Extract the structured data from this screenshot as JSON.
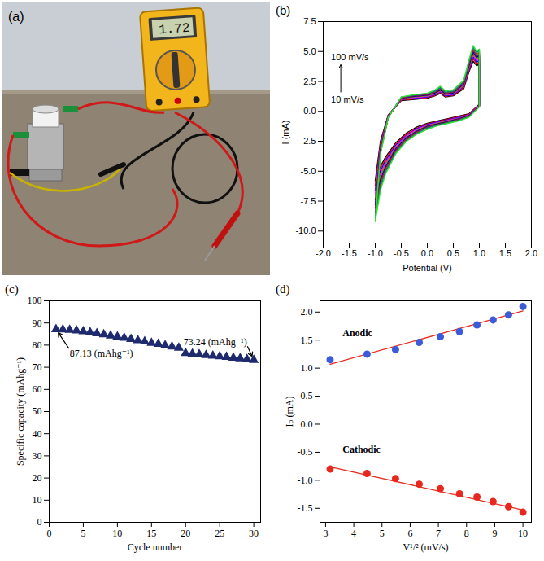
{
  "photo": {
    "panel": "(a)",
    "display": 1.72
  },
  "chart_data": [
    {
      "type": "line",
      "panel": "(b)",
      "xlabel": "Potential (V)",
      "ylabel": "I (mA)",
      "x": [
        -1.0,
        -0.9,
        -0.75,
        -0.5,
        -0.25,
        0.0,
        0.15,
        0.25,
        0.35,
        0.5,
        0.7,
        0.8,
        0.88,
        0.95,
        1.0,
        1.0,
        0.8,
        0.6,
        0.4,
        0.2,
        0.0,
        -0.2,
        -0.4,
        -0.6,
        -0.8,
        -0.9,
        -1.0
      ],
      "series": [
        {
          "color": "#000000",
          "values": [
            -5.8,
            -2.5,
            -0.3,
            0.9,
            1.0,
            1.1,
            1.3,
            1.5,
            1.2,
            1.3,
            1.9,
            3.3,
            4.2,
            3.8,
            4.0,
            0.6,
            -0.2,
            -0.4,
            -0.6,
            -0.8,
            -1.0,
            -1.3,
            -1.8,
            -2.6,
            -3.8,
            -4.6,
            -5.8
          ]
        },
        {
          "color": "#ff0000",
          "values": [
            -6.2,
            -2.7,
            -0.3,
            0.95,
            1.05,
            1.15,
            1.35,
            1.6,
            1.25,
            1.35,
            2.0,
            3.4,
            4.4,
            3.95,
            4.15,
            0.55,
            -0.25,
            -0.45,
            -0.65,
            -0.85,
            -1.05,
            -1.4,
            -1.9,
            -2.7,
            -3.95,
            -4.8,
            -6.2
          ]
        },
        {
          "color": "#0000ff",
          "values": [
            -6.6,
            -2.9,
            -0.35,
            1.0,
            1.1,
            1.2,
            1.4,
            1.65,
            1.3,
            1.4,
            2.1,
            3.5,
            4.55,
            4.1,
            4.3,
            0.5,
            -0.3,
            -0.5,
            -0.7,
            -0.9,
            -1.1,
            -1.45,
            -2.0,
            -2.8,
            -4.1,
            -5.0,
            -6.6
          ]
        },
        {
          "color": "#ff00ff",
          "values": [
            -7.0,
            -3.0,
            -0.4,
            1.0,
            1.15,
            1.25,
            1.45,
            1.7,
            1.35,
            1.45,
            2.15,
            3.6,
            4.7,
            4.25,
            4.45,
            0.5,
            -0.3,
            -0.55,
            -0.75,
            -0.95,
            -1.15,
            -1.5,
            -2.05,
            -2.9,
            -4.25,
            -5.2,
            -7.0
          ]
        },
        {
          "color": "#808000",
          "values": [
            -7.4,
            -3.1,
            -0.4,
            1.05,
            1.2,
            1.3,
            1.5,
            1.75,
            1.4,
            1.5,
            2.2,
            3.7,
            4.8,
            4.4,
            4.6,
            0.45,
            -0.35,
            -0.6,
            -0.8,
            -1.0,
            -1.2,
            -1.6,
            -2.15,
            -3.0,
            -4.4,
            -5.4,
            -7.4
          ]
        },
        {
          "color": "#000080",
          "values": [
            -7.8,
            -3.2,
            -0.45,
            1.1,
            1.25,
            1.35,
            1.55,
            1.8,
            1.45,
            1.55,
            2.3,
            3.8,
            4.95,
            4.5,
            4.7,
            0.45,
            -0.35,
            -0.62,
            -0.85,
            -1.05,
            -1.25,
            -1.65,
            -2.2,
            -3.1,
            -4.6,
            -5.7,
            -7.8
          ]
        },
        {
          "color": "#800080",
          "values": [
            -8.1,
            -3.3,
            -0.45,
            1.1,
            1.3,
            1.4,
            1.6,
            1.9,
            1.5,
            1.6,
            2.35,
            3.95,
            5.1,
            4.6,
            4.8,
            0.45,
            -0.4,
            -0.65,
            -0.9,
            -1.1,
            -1.3,
            -1.7,
            -2.3,
            -3.2,
            -4.75,
            -5.9,
            -8.1
          ]
        },
        {
          "color": "#8b4513",
          "values": [
            -8.5,
            -3.4,
            -0.5,
            1.15,
            1.35,
            1.45,
            1.65,
            1.95,
            1.55,
            1.65,
            2.45,
            4.05,
            5.2,
            4.75,
            4.95,
            0.4,
            -0.42,
            -0.7,
            -0.92,
            -1.12,
            -1.35,
            -1.78,
            -2.38,
            -3.3,
            -4.9,
            -6.1,
            -8.5
          ]
        },
        {
          "color": "#008080",
          "values": [
            -8.9,
            -3.5,
            -0.5,
            1.2,
            1.35,
            1.5,
            1.7,
            2.0,
            1.6,
            1.7,
            2.5,
            4.15,
            5.35,
            4.9,
            5.1,
            0.4,
            -0.45,
            -0.75,
            -0.95,
            -1.15,
            -1.4,
            -1.85,
            -2.45,
            -3.4,
            -5.05,
            -6.35,
            -8.9
          ]
        },
        {
          "color": "#33e02f",
          "values": [
            -9.2,
            -3.6,
            -0.5,
            1.2,
            1.4,
            1.5,
            1.8,
            2.1,
            1.7,
            1.8,
            2.6,
            4.3,
            5.5,
            5.0,
            5.2,
            0.4,
            -0.5,
            -0.8,
            -1.0,
            -1.2,
            -1.5,
            -1.9,
            -2.5,
            -3.5,
            -5.2,
            -6.6,
            -9.2
          ]
        }
      ],
      "xlim": [
        -2,
        2
      ],
      "xticks": [
        {
          "value": -2,
          "label": "-2.0"
        },
        -1.5,
        {
          "value": -1,
          "label": "-1.0"
        },
        -0.5,
        {
          "value": 0,
          "label": "0.0"
        },
        0.5,
        {
          "value": 1,
          "label": "1.0"
        },
        1.5,
        {
          "value": 2,
          "label": "2.0"
        }
      ],
      "ylim": [
        -11,
        7.5
      ],
      "yticks": [
        {
          "value": -10,
          "label": "-10.0"
        },
        -7.5,
        {
          "value": -5,
          "label": "-5.0"
        },
        -2.5,
        {
          "value": 0,
          "label": "0.0"
        },
        2.5,
        {
          "value": 5,
          "label": "5.0"
        },
        7.5
      ],
      "annotations": [
        {
          "text": "100 mV/s",
          "x": -1.85,
          "y": 4.5
        },
        {
          "text": "10 mV/s",
          "x": -1.85,
          "y": 1.0
        }
      ]
    },
    {
      "type": "scatter",
      "panel": "(c)",
      "xlabel": "Cycle number",
      "ylabel": "Specific capacity (mAhg⁻¹)",
      "x": [
        1,
        2,
        3,
        4,
        5,
        6,
        7,
        8,
        9,
        10,
        11,
        12,
        13,
        14,
        15,
        16,
        17,
        18,
        19,
        20,
        21,
        22,
        23,
        24,
        25,
        26,
        27,
        28,
        29,
        30
      ],
      "series": [
        {
          "color": "#1f2a6e",
          "marker": "triangle",
          "values": [
            87.13,
            87.0,
            86.9,
            86.6,
            86.2,
            85.8,
            85.3,
            84.8,
            84.3,
            83.8,
            83.3,
            82.7,
            82.2,
            81.6,
            81.0,
            80.5,
            79.9,
            79.3,
            78.8,
            76.4,
            76.1,
            75.8,
            75.5,
            75.2,
            74.9,
            74.6,
            74.3,
            74.0,
            73.6,
            73.24
          ]
        }
      ],
      "xlim": [
        0,
        31
      ],
      "xticks": [
        0,
        5,
        10,
        15,
        20,
        25,
        30
      ],
      "ylim": [
        0,
        100
      ],
      "yticks": [
        0,
        10,
        20,
        30,
        40,
        50,
        60,
        70,
        80,
        90,
        100
      ],
      "annotations": [
        {
          "text": "87.13 (mAhg⁻¹)",
          "x": 3,
          "y": 78,
          "xy": [
            1,
            87.13
          ]
        },
        {
          "text": "73.24 (mAhg⁻¹)",
          "x": 29,
          "y": 80,
          "xy": [
            30,
            73.24
          ]
        }
      ]
    },
    {
      "type": "scatter",
      "panel": "(d)",
      "xlabel": "V¹/² (mV/s)",
      "ylabel": "Iₚ (mA)",
      "x": [
        3.16,
        4.47,
        5.48,
        6.32,
        7.07,
        7.75,
        8.37,
        8.94,
        9.49,
        10.0
      ],
      "series": [
        {
          "color": "#3b5bdb",
          "marker": "circle",
          "values": [
            1.15,
            1.25,
            1.33,
            1.46,
            1.56,
            1.65,
            1.77,
            1.86,
            1.95,
            2.1
          ]
        },
        {
          "color": "#e8281e",
          "marker": "circle",
          "values": [
            -0.8,
            -0.88,
            -0.97,
            -1.07,
            -1.15,
            -1.24,
            -1.3,
            -1.38,
            -1.47,
            -1.57
          ]
        },
        {
          "type": "line",
          "color": "#e53020",
          "x": [
            3.16,
            10
          ],
          "values": [
            1.07,
            2.02
          ]
        },
        {
          "type": "line",
          "color": "#e53020",
          "x": [
            3.16,
            10
          ],
          "values": [
            -0.76,
            -1.53
          ]
        }
      ],
      "xlim": [
        2.8,
        10.3
      ],
      "xticks": [
        3,
        4,
        5,
        6,
        7,
        8,
        9,
        10
      ],
      "ylim": [
        -1.75,
        2.2
      ],
      "yticks": [
        -1.5,
        {
          "value": -1,
          "label": "-1.0"
        },
        -0.5,
        {
          "value": 0,
          "label": "0.0"
        },
        0.5,
        {
          "value": 1,
          "label": "1.0"
        },
        1.5,
        {
          "value": 2,
          "label": "2.0"
        }
      ],
      "annotations": [
        {
          "text": "Anodic",
          "x": 3.6,
          "y": 1.62
        },
        {
          "text": "Cathodic",
          "x": 3.6,
          "y": -0.45
        }
      ]
    }
  ]
}
